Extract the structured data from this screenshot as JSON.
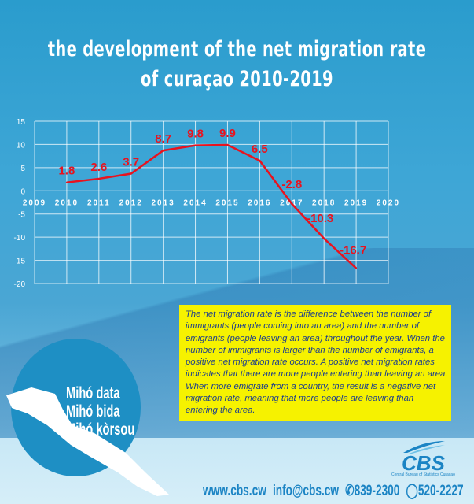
{
  "title_lines": [
    "the development of the net migration rate",
    "of curaçao 2010-2019"
  ],
  "chart_data": {
    "type": "line",
    "title": "the development of the net migration rate of curaçao 2010-2019",
    "x": [
      2010,
      2011,
      2012,
      2013,
      2014,
      2015,
      2016,
      2017,
      2018,
      2019
    ],
    "series": [
      {
        "values": [
          1.8,
          2.6,
          3.7,
          8.7,
          9.8,
          9.9,
          6.5,
          -2.8,
          -10.3,
          -16.7
        ],
        "color": "#e8131f"
      }
    ],
    "data_labels": [
      "1.8",
      "2.6",
      "3.7",
      "8.7",
      "9.8",
      "9.9",
      "6.5",
      "-2.8",
      "-10.3",
      "-16.7"
    ],
    "xlim": [
      2009,
      2020
    ],
    "ylim": [
      -20,
      15
    ],
    "x_ticks": [
      "2009",
      "2010",
      "2011",
      "2012",
      "2013",
      "2014",
      "2015",
      "2016",
      "2017",
      "2018",
      "2019",
      "2020"
    ],
    "y_ticks": [
      "15",
      "10",
      "5",
      "0",
      "-5",
      "-10",
      "-15",
      "-20"
    ],
    "grid": true
  },
  "note": "The net migration rate is the difference between the number of immigrants (people coming into an area) and the number of emigrants (people leaving an area) throughout the year. When the number of immigrants is larger than the number of emigrants, a positive net migration rate occurs. A positive net migration rates indicates that there are more people entering than leaving an area. When more emigrate from a country, the result is a negative net migration rate, meaning that more people are leaving than entering the area.",
  "slogan": [
    "Mihó data",
    "Mihó bida",
    "Mihó kòrsou"
  ],
  "logo": {
    "name": "CBS",
    "subtitle": "Central Bureau of Statistics Curaçao"
  },
  "contact": {
    "web": "www.cbs.cw",
    "email": "info@cbs.cw",
    "phone": "839-2300",
    "whatsapp": "520-2227"
  }
}
